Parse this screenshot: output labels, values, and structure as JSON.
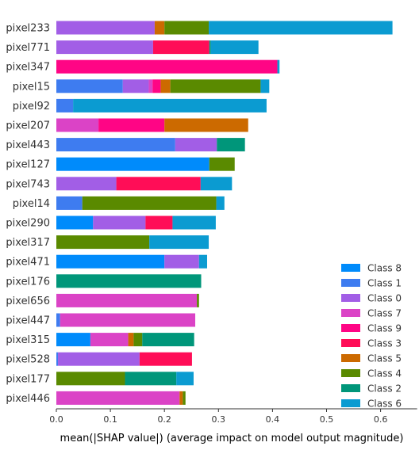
{
  "chart_data": {
    "type": "bar",
    "orientation": "horizontal",
    "stacked": true,
    "xlabel": "mean(|SHAP value|) (average impact on model output magnitude)",
    "xlim": [
      0,
      0.65
    ],
    "xticks": [
      0.0,
      0.1,
      0.2,
      0.3,
      0.4,
      0.5,
      0.6
    ],
    "xtick_labels": [
      "0.0",
      "0.1",
      "0.2",
      "0.3",
      "0.4",
      "0.5",
      "0.6"
    ],
    "grid": false,
    "legend_position": "bottom-right",
    "categories": [
      "pixel233",
      "pixel771",
      "pixel347",
      "pixel15",
      "pixel92",
      "pixel207",
      "pixel443",
      "pixel127",
      "pixel743",
      "pixel14",
      "pixel290",
      "pixel317",
      "pixel471",
      "pixel176",
      "pixel656",
      "pixel447",
      "pixel315",
      "pixel528",
      "pixel177",
      "pixel446"
    ],
    "series": [
      {
        "name": "Class 8",
        "color": "#008bfb",
        "values": [
          0.0,
          0.0,
          0.0,
          0.0,
          0.0,
          0.0,
          0.0,
          0.283,
          0.0,
          0.0,
          0.068,
          0.0,
          0.2,
          0.0,
          0.0,
          0.0,
          0.063,
          0.0,
          0.0,
          0.0
        ]
      },
      {
        "name": "Class 1",
        "color": "#3e7cf0",
        "values": [
          0.0,
          0.0,
          0.0,
          0.123,
          0.031,
          0.0,
          0.22,
          0.0,
          0.0,
          0.048,
          0.0,
          0.0,
          0.0,
          0.0,
          0.0,
          0.007,
          0.0,
          0.003,
          0.0,
          0.0
        ]
      },
      {
        "name": "Class 0",
        "color": "#a25ee6",
        "values": [
          0.182,
          0.179,
          0.0,
          0.048,
          0.0,
          0.0,
          0.077,
          0.0,
          0.111,
          0.0,
          0.097,
          0.0,
          0.064,
          0.0,
          0.0,
          0.0,
          0.0,
          0.151,
          0.0,
          0.0
        ]
      },
      {
        "name": "Class 7",
        "color": "#db43c6",
        "values": [
          0.0,
          0.0,
          0.0,
          0.007,
          0.0,
          0.078,
          0.0,
          0.0,
          0.0,
          0.0,
          0.0,
          0.0,
          0.0,
          0.0,
          0.26,
          0.25,
          0.07,
          0.0,
          0.0,
          0.228
        ]
      },
      {
        "name": "Class 9",
        "color": "#ff0585",
        "values": [
          0.0,
          0.0,
          0.409,
          0.015,
          0.0,
          0.122,
          0.0,
          0.0,
          0.0,
          0.0,
          0.0,
          0.0,
          0.0,
          0.0,
          0.0,
          0.0,
          0.0,
          0.0,
          0.0,
          0.0
        ]
      },
      {
        "name": "Class 3",
        "color": "#ff0d57",
        "values": [
          0.0,
          0.104,
          0.0,
          0.0,
          0.0,
          0.0,
          0.0,
          0.0,
          0.156,
          0.0,
          0.05,
          0.0,
          0.0,
          0.0,
          0.0,
          0.0,
          0.0,
          0.097,
          0.0,
          0.0
        ]
      },
      {
        "name": "Class 5",
        "color": "#cc6a00",
        "values": [
          0.018,
          0.0,
          0.0,
          0.018,
          0.0,
          0.155,
          0.0,
          0.0,
          0.0,
          0.0,
          0.0,
          0.0,
          0.0,
          0.0,
          0.0,
          0.0,
          0.01,
          0.0,
          0.0,
          0.006
        ]
      },
      {
        "name": "Class 4",
        "color": "#5a8a00",
        "values": [
          0.082,
          0.0,
          0.0,
          0.167,
          0.0,
          0.0,
          0.0,
          0.047,
          0.0,
          0.248,
          0.0,
          0.172,
          0.0,
          0.0,
          0.004,
          0.0,
          0.016,
          0.0,
          0.127,
          0.005
        ]
      },
      {
        "name": "Class 2",
        "color": "#00967a",
        "values": [
          0.0,
          0.003,
          0.0,
          0.0,
          0.0,
          0.0,
          0.052,
          0.0,
          0.0,
          0.0,
          0.0,
          0.0,
          0.0,
          0.268,
          0.0,
          0.0,
          0.096,
          0.0,
          0.095,
          0.0
        ]
      },
      {
        "name": "Class 6",
        "color": "#0b9bd1",
        "values": [
          0.34,
          0.088,
          0.004,
          0.016,
          0.358,
          0.0,
          0.0,
          0.0,
          0.058,
          0.015,
          0.08,
          0.11,
          0.015,
          0.0,
          0.0,
          0.0,
          0.0,
          0.0,
          0.032,
          0.0
        ]
      }
    ]
  }
}
